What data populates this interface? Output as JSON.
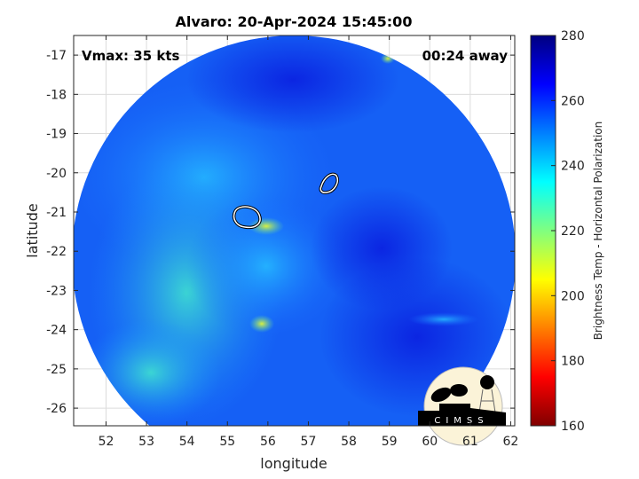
{
  "chart_data": {
    "type": "heatmap",
    "title": "Alvaro: 20-Apr-2024 15:45:00",
    "xlabel": "longitude",
    "ylabel": "latitude",
    "xlim": [
      51.2,
      62.1
    ],
    "ylim": [
      -26.45,
      -16.5
    ],
    "xticks": [
      52,
      53,
      54,
      55,
      56,
      57,
      58,
      59,
      60,
      61,
      62
    ],
    "yticks": [
      -17,
      -18,
      -19,
      -20,
      -21,
      -22,
      -23,
      -24,
      -25,
      -26
    ],
    "grid": true,
    "annotations": {
      "vmax": "Vmax: 35 kts",
      "time_offset": "00:24 away"
    },
    "colorbar": {
      "label": "Brightness Temp - Horizontal Polarization",
      "range": [
        160,
        280
      ],
      "ticks": [
        160,
        180,
        200,
        220,
        240,
        260,
        280
      ],
      "colormap": "jet"
    },
    "contours": [
      {
        "center": [
          55.5,
          -20.9
        ]
      },
      {
        "center": [
          57.6,
          -20.2
        ]
      }
    ],
    "logo": "CIMSS"
  }
}
